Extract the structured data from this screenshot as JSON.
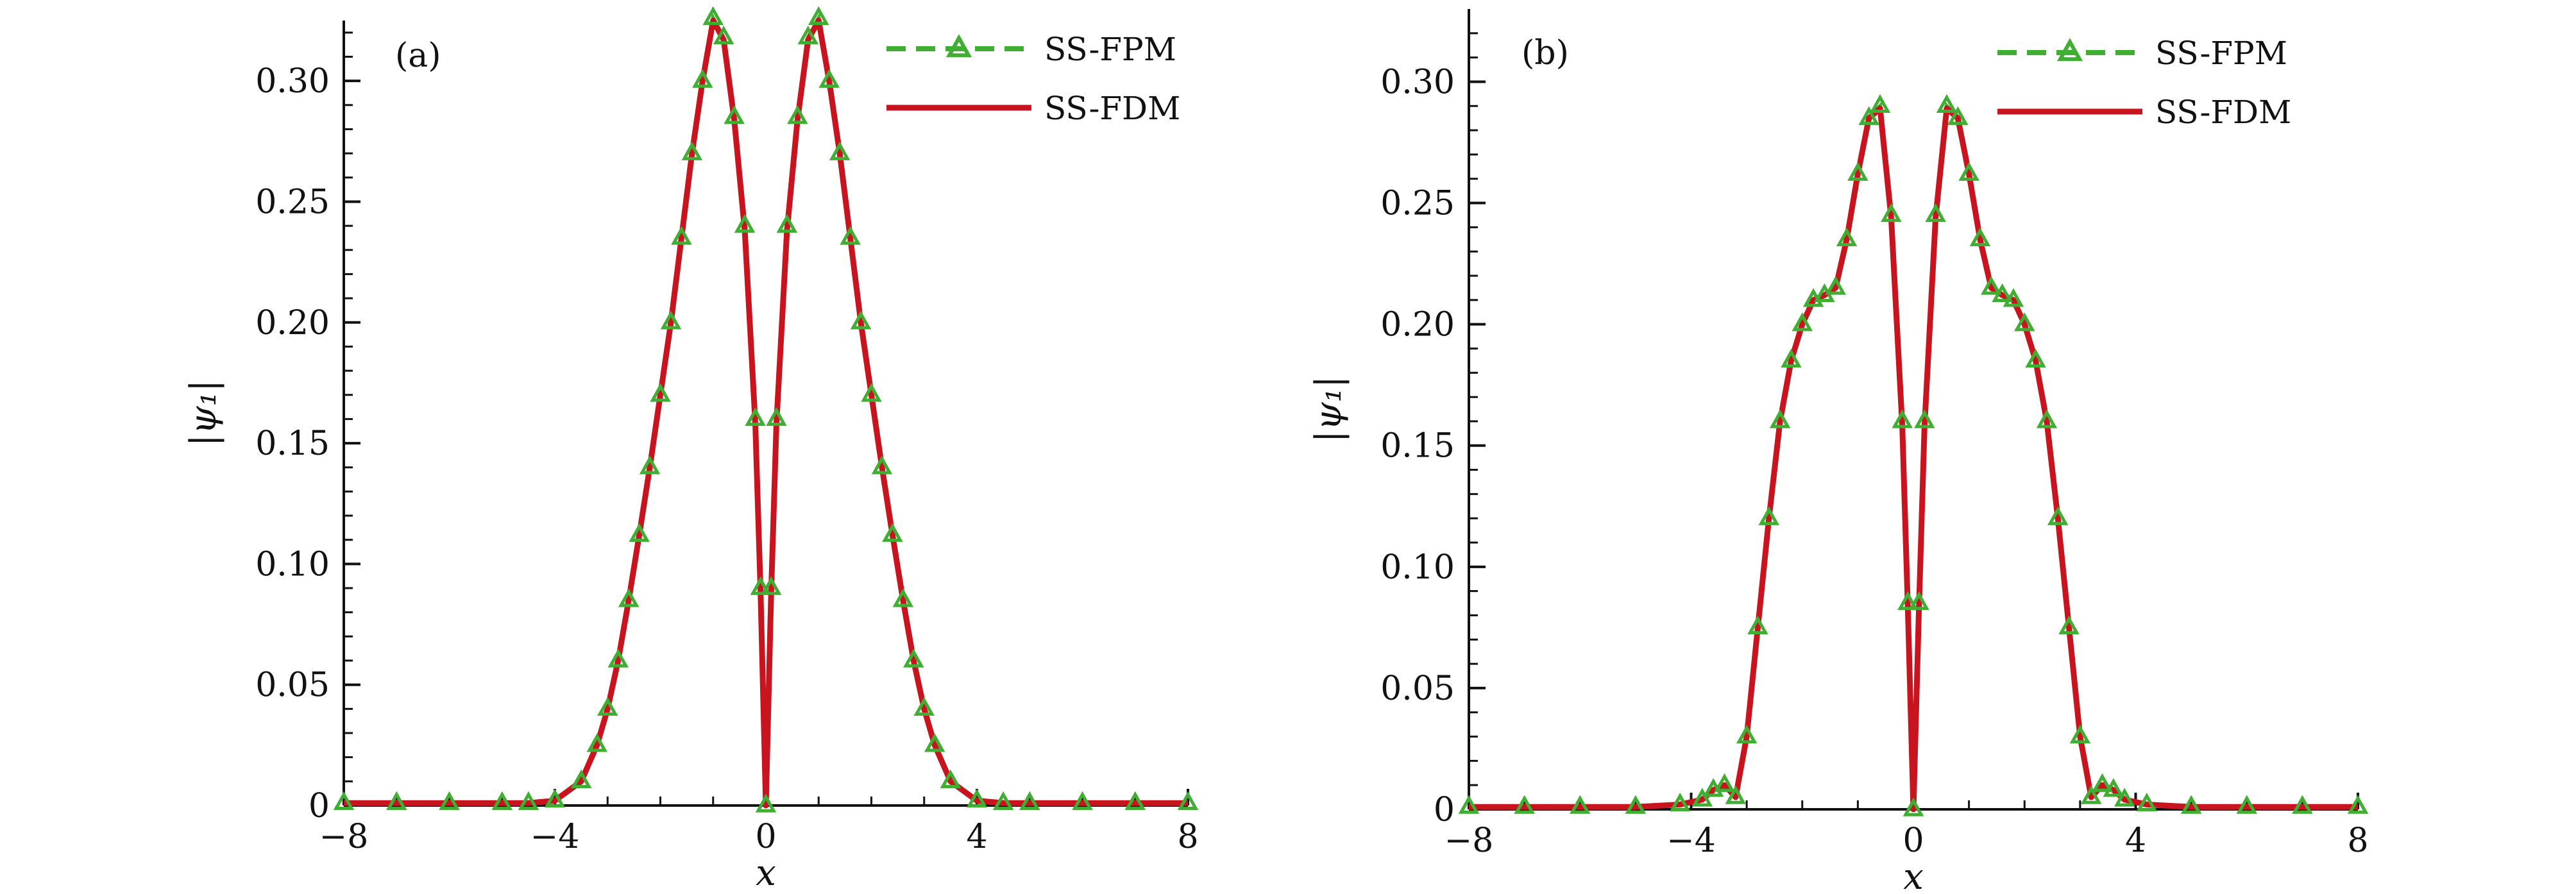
{
  "colors": {
    "ss_fpm": "#3fae32",
    "ss_fdm": "#c8141e",
    "axis": "#111111"
  },
  "chart_data": [
    {
      "type": "line",
      "panel_label": "(a)",
      "xlabel": "x",
      "ylabel": "|ψ₁|",
      "xlim": [
        -8,
        8
      ],
      "ylim": [
        0,
        0.325
      ],
      "xticks": [
        -8,
        -4,
        0,
        4,
        8
      ],
      "xtick_labels": [
        "−8",
        "−4",
        "0",
        "4",
        "8"
      ],
      "yticks": [
        0,
        0.05,
        0.1,
        0.15,
        0.2,
        0.25,
        0.3
      ],
      "ytick_labels": [
        "0",
        "0.05",
        "0.10",
        "0.15",
        "0.20",
        "0.25",
        "0.30"
      ],
      "grid": false,
      "legend_position": "top-right",
      "series": [
        {
          "name": "SS-FPM",
          "style": "dashed line with triangle markers",
          "color": "#3fae32",
          "x": [
            -8,
            -7,
            -6,
            -5,
            -4.5,
            -4,
            -3.5,
            -3.2,
            -3.0,
            -2.8,
            -2.6,
            -2.4,
            -2.2,
            -2.0,
            -1.8,
            -1.6,
            -1.4,
            -1.2,
            -1.0,
            -0.8,
            -0.6,
            -0.4,
            -0.2,
            -0.1,
            0,
            0.1,
            0.2,
            0.4,
            0.6,
            0.8,
            1.0,
            1.2,
            1.4,
            1.6,
            1.8,
            2.0,
            2.2,
            2.4,
            2.6,
            2.8,
            3.0,
            3.2,
            3.5,
            4,
            4.5,
            5,
            6,
            7,
            8
          ],
          "y": [
            0.001,
            0.001,
            0.001,
            0.001,
            0.001,
            0.002,
            0.01,
            0.025,
            0.04,
            0.06,
            0.085,
            0.112,
            0.14,
            0.17,
            0.2,
            0.235,
            0.27,
            0.3,
            0.326,
            0.318,
            0.285,
            0.24,
            0.16,
            0.09,
            0.0,
            0.09,
            0.16,
            0.24,
            0.285,
            0.318,
            0.326,
            0.3,
            0.27,
            0.235,
            0.2,
            0.17,
            0.14,
            0.112,
            0.085,
            0.06,
            0.04,
            0.025,
            0.01,
            0.002,
            0.001,
            0.001,
            0.001,
            0.001,
            0.001
          ]
        },
        {
          "name": "SS-FDM",
          "style": "solid line",
          "color": "#c8141e",
          "x": [
            -8,
            -7,
            -6,
            -5,
            -4.5,
            -4,
            -3.5,
            -3.2,
            -3.0,
            -2.8,
            -2.6,
            -2.4,
            -2.2,
            -2.0,
            -1.8,
            -1.6,
            -1.4,
            -1.2,
            -1.0,
            -0.8,
            -0.6,
            -0.4,
            -0.2,
            -0.1,
            0,
            0.1,
            0.2,
            0.4,
            0.6,
            0.8,
            1.0,
            1.2,
            1.4,
            1.6,
            1.8,
            2.0,
            2.2,
            2.4,
            2.6,
            2.8,
            3.0,
            3.2,
            3.5,
            4,
            4.5,
            5,
            6,
            7,
            8
          ],
          "y": [
            0.001,
            0.001,
            0.001,
            0.001,
            0.001,
            0.002,
            0.01,
            0.025,
            0.04,
            0.06,
            0.085,
            0.112,
            0.14,
            0.17,
            0.2,
            0.235,
            0.27,
            0.3,
            0.325,
            0.317,
            0.284,
            0.238,
            0.158,
            0.088,
            0.0,
            0.088,
            0.158,
            0.238,
            0.284,
            0.317,
            0.325,
            0.3,
            0.27,
            0.235,
            0.2,
            0.17,
            0.14,
            0.112,
            0.085,
            0.06,
            0.04,
            0.025,
            0.01,
            0.002,
            0.001,
            0.001,
            0.001,
            0.001,
            0.001
          ]
        }
      ]
    },
    {
      "type": "line",
      "panel_label": "(b)",
      "xlabel": "x",
      "ylabel": "|ψ₁|",
      "xlim": [
        -8,
        8
      ],
      "ylim": [
        0,
        0.33
      ],
      "xticks": [
        -8,
        -4,
        0,
        4,
        8
      ],
      "xtick_labels": [
        "−8",
        "−4",
        "0",
        "4",
        "8"
      ],
      "yticks": [
        0,
        0.05,
        0.1,
        0.15,
        0.2,
        0.25,
        0.3
      ],
      "ytick_labels": [
        "0",
        "0.05",
        "0.10",
        "0.15",
        "0.20",
        "0.25",
        "0.30"
      ],
      "grid": false,
      "legend_position": "top-right",
      "series": [
        {
          "name": "SS-FPM",
          "style": "dashed line with triangle markers",
          "color": "#3fae32",
          "x": [
            -8,
            -7,
            -6,
            -5,
            -4.2,
            -3.8,
            -3.6,
            -3.4,
            -3.2,
            -3.0,
            -2.8,
            -2.6,
            -2.4,
            -2.2,
            -2.0,
            -1.8,
            -1.6,
            -1.4,
            -1.2,
            -1.0,
            -0.8,
            -0.6,
            -0.4,
            -0.2,
            -0.1,
            0,
            0.1,
            0.2,
            0.4,
            0.6,
            0.8,
            1.0,
            1.2,
            1.4,
            1.6,
            1.8,
            2.0,
            2.2,
            2.4,
            2.6,
            2.8,
            3.0,
            3.2,
            3.4,
            3.6,
            3.8,
            4.2,
            5,
            6,
            7,
            8
          ],
          "y": [
            0.001,
            0.001,
            0.001,
            0.001,
            0.002,
            0.004,
            0.008,
            0.01,
            0.005,
            0.03,
            0.075,
            0.12,
            0.16,
            0.185,
            0.2,
            0.21,
            0.212,
            0.215,
            0.235,
            0.262,
            0.285,
            0.29,
            0.245,
            0.16,
            0.085,
            0.0,
            0.085,
            0.16,
            0.245,
            0.29,
            0.285,
            0.262,
            0.235,
            0.215,
            0.212,
            0.21,
            0.2,
            0.185,
            0.16,
            0.12,
            0.075,
            0.03,
            0.005,
            0.01,
            0.008,
            0.004,
            0.002,
            0.001,
            0.001,
            0.001,
            0.001
          ]
        },
        {
          "name": "SS-FDM",
          "style": "solid line",
          "color": "#c8141e",
          "x": [
            -8,
            -7,
            -6,
            -5,
            -4.2,
            -3.8,
            -3.6,
            -3.4,
            -3.2,
            -3.0,
            -2.8,
            -2.6,
            -2.4,
            -2.2,
            -2.0,
            -1.8,
            -1.6,
            -1.4,
            -1.2,
            -1.0,
            -0.8,
            -0.6,
            -0.4,
            -0.2,
            -0.1,
            0,
            0.1,
            0.2,
            0.4,
            0.6,
            0.8,
            1.0,
            1.2,
            1.4,
            1.6,
            1.8,
            2.0,
            2.2,
            2.4,
            2.6,
            2.8,
            3.0,
            3.2,
            3.4,
            3.6,
            3.8,
            4.2,
            5,
            6,
            7,
            8
          ],
          "y": [
            0.001,
            0.001,
            0.001,
            0.001,
            0.002,
            0.004,
            0.008,
            0.01,
            0.005,
            0.03,
            0.075,
            0.12,
            0.16,
            0.185,
            0.2,
            0.21,
            0.212,
            0.215,
            0.235,
            0.262,
            0.285,
            0.289,
            0.244,
            0.158,
            0.083,
            0.0,
            0.083,
            0.158,
            0.244,
            0.289,
            0.285,
            0.262,
            0.235,
            0.215,
            0.212,
            0.21,
            0.2,
            0.185,
            0.16,
            0.12,
            0.075,
            0.03,
            0.005,
            0.01,
            0.008,
            0.004,
            0.002,
            0.001,
            0.001,
            0.001,
            0.001
          ]
        }
      ]
    }
  ]
}
